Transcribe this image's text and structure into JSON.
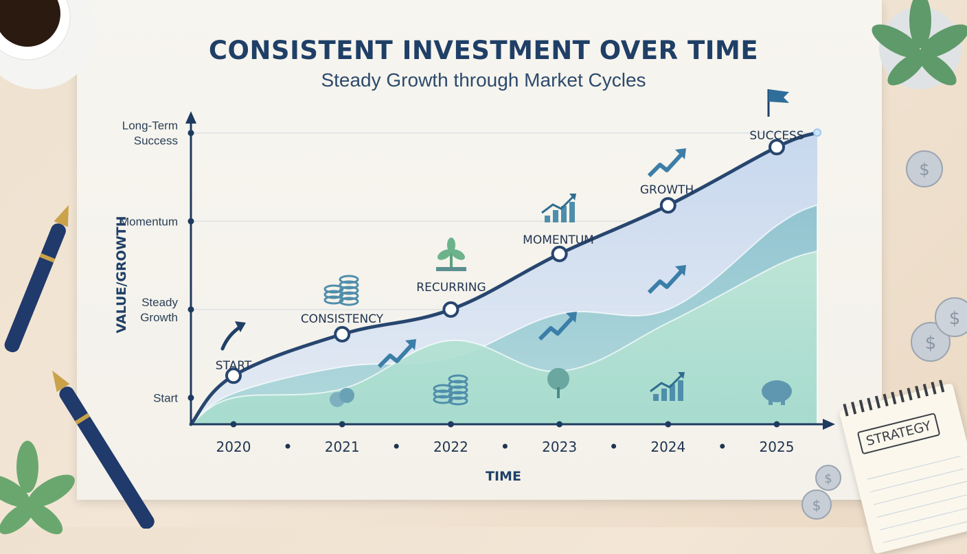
{
  "title": "CONSISTENT INVESTMENT OVER TIME",
  "subtitle": "Steady Growth through Market Cycles",
  "colors": {
    "axis": "#1e3a5f",
    "main_line": "#27466f",
    "area_light_blue": "#c5d6ee",
    "area_teal": "#8fc3cf",
    "area_mint": "#bfe6d7",
    "icon": "#4f8eab"
  },
  "chart_data": {
    "type": "area",
    "title": "CONSISTENT INVESTMENT OVER TIME",
    "subtitle": "Steady Growth through Market Cycles",
    "xlabel": "TIME",
    "ylabel": "VALUE/GROWTH",
    "x": [
      "2020",
      "2021",
      "2022",
      "2023",
      "2024",
      "2025"
    ],
    "y_levels": [
      {
        "label": "Start",
        "value": 0
      },
      {
        "label": "Steady Growth",
        "value": 1
      },
      {
        "label": "Momentum",
        "value": 2
      },
      {
        "label": "Long-Term Success",
        "value": 3
      }
    ],
    "ylim": [
      -0.3,
      3.2
    ],
    "grid": true,
    "series": [
      {
        "name": "",
        "values": [
          0.25,
          0.72,
          1.0,
          1.63,
          2.18,
          2.84
        ]
      },
      {
        "name": "",
        "values": [
          0.05,
          0.35,
          0.45,
          0.95,
          1.0,
          1.95
        ]
      },
      {
        "name": "",
        "values": [
          0.0,
          0.1,
          0.65,
          0.3,
          0.85,
          1.5
        ]
      }
    ],
    "milestones": [
      {
        "x": "2020",
        "label": "START",
        "icon": "arrow-up-icon"
      },
      {
        "x": "2021",
        "label": "CONSISTENCY",
        "icon": "coin-stack-icon"
      },
      {
        "x": "2022",
        "label": "RECURRING",
        "icon": "sprout-icon"
      },
      {
        "x": "2023",
        "label": "MOMENTUM",
        "icon": "bar-chart-icon"
      },
      {
        "x": "2024",
        "label": "GROWTH",
        "icon": "trend-arrow-icon"
      },
      {
        "x": "2025",
        "label": "SUCCESS",
        "icon": "flag-icon"
      }
    ],
    "area_icons": [
      "dollar-coins-icon",
      "coin-stack-icon",
      "tree-icon",
      "bar-growth-icon",
      "piggy-bank-icon"
    ]
  },
  "notepad_label": "STRATEGY"
}
